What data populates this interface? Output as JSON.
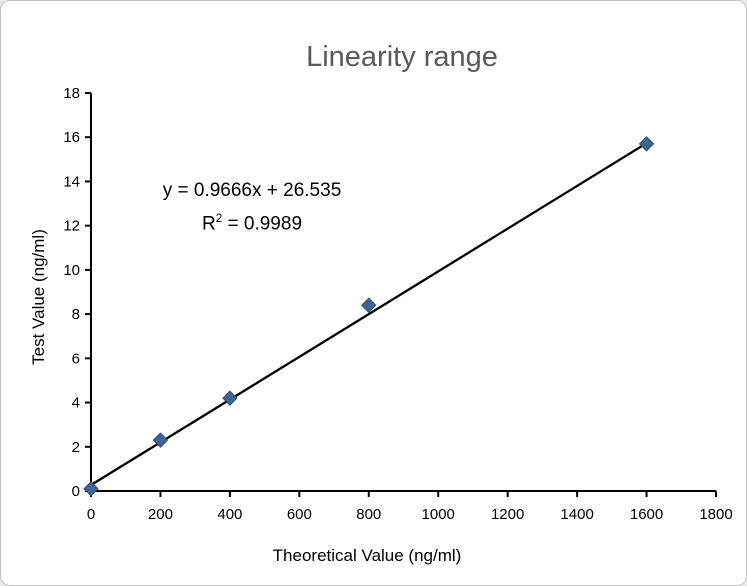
{
  "frame": {
    "background": "#ffffff",
    "border_color": "#c3c3c3",
    "page_background": "#eaeaea"
  },
  "chart_data": {
    "type": "scatter",
    "title": "Linearity range",
    "title_color": "#595959",
    "xlabel": "Theoretical Value (ng/ml)",
    "ylabel": "Test Value (ng/ml)",
    "xlim": [
      0,
      1800
    ],
    "ylim": [
      0,
      18
    ],
    "xticks": [
      0,
      200,
      400,
      600,
      800,
      1000,
      1200,
      1400,
      1600,
      1800
    ],
    "yticks": [
      0,
      2,
      4,
      6,
      8,
      10,
      12,
      14,
      16,
      18
    ],
    "grid": false,
    "legend": "none",
    "axis_color": "#000000",
    "tick_label_color": "#000000",
    "series": [
      {
        "name": "Test Value",
        "marker": "diamond",
        "marker_fill": "#3E6595",
        "marker_stroke": "#2E4C71",
        "points": [
          {
            "x": 0,
            "y": 0.1
          },
          {
            "x": 200,
            "y": 2.3
          },
          {
            "x": 400,
            "y": 4.2
          },
          {
            "x": 800,
            "y": 8.4
          },
          {
            "x": 1600,
            "y": 15.7
          }
        ]
      }
    ],
    "trendline": {
      "color": "#000000",
      "slope": 0.9666,
      "intercept": 26.535,
      "x_start": 0,
      "y_start": 0.27,
      "x_end": 1600,
      "y_end": 15.73
    },
    "annotation": {
      "line1": "y = 0.9666x + 26.535",
      "r_base": "R",
      "r_sup": "2",
      "r_rest": " = 0.9989"
    }
  }
}
